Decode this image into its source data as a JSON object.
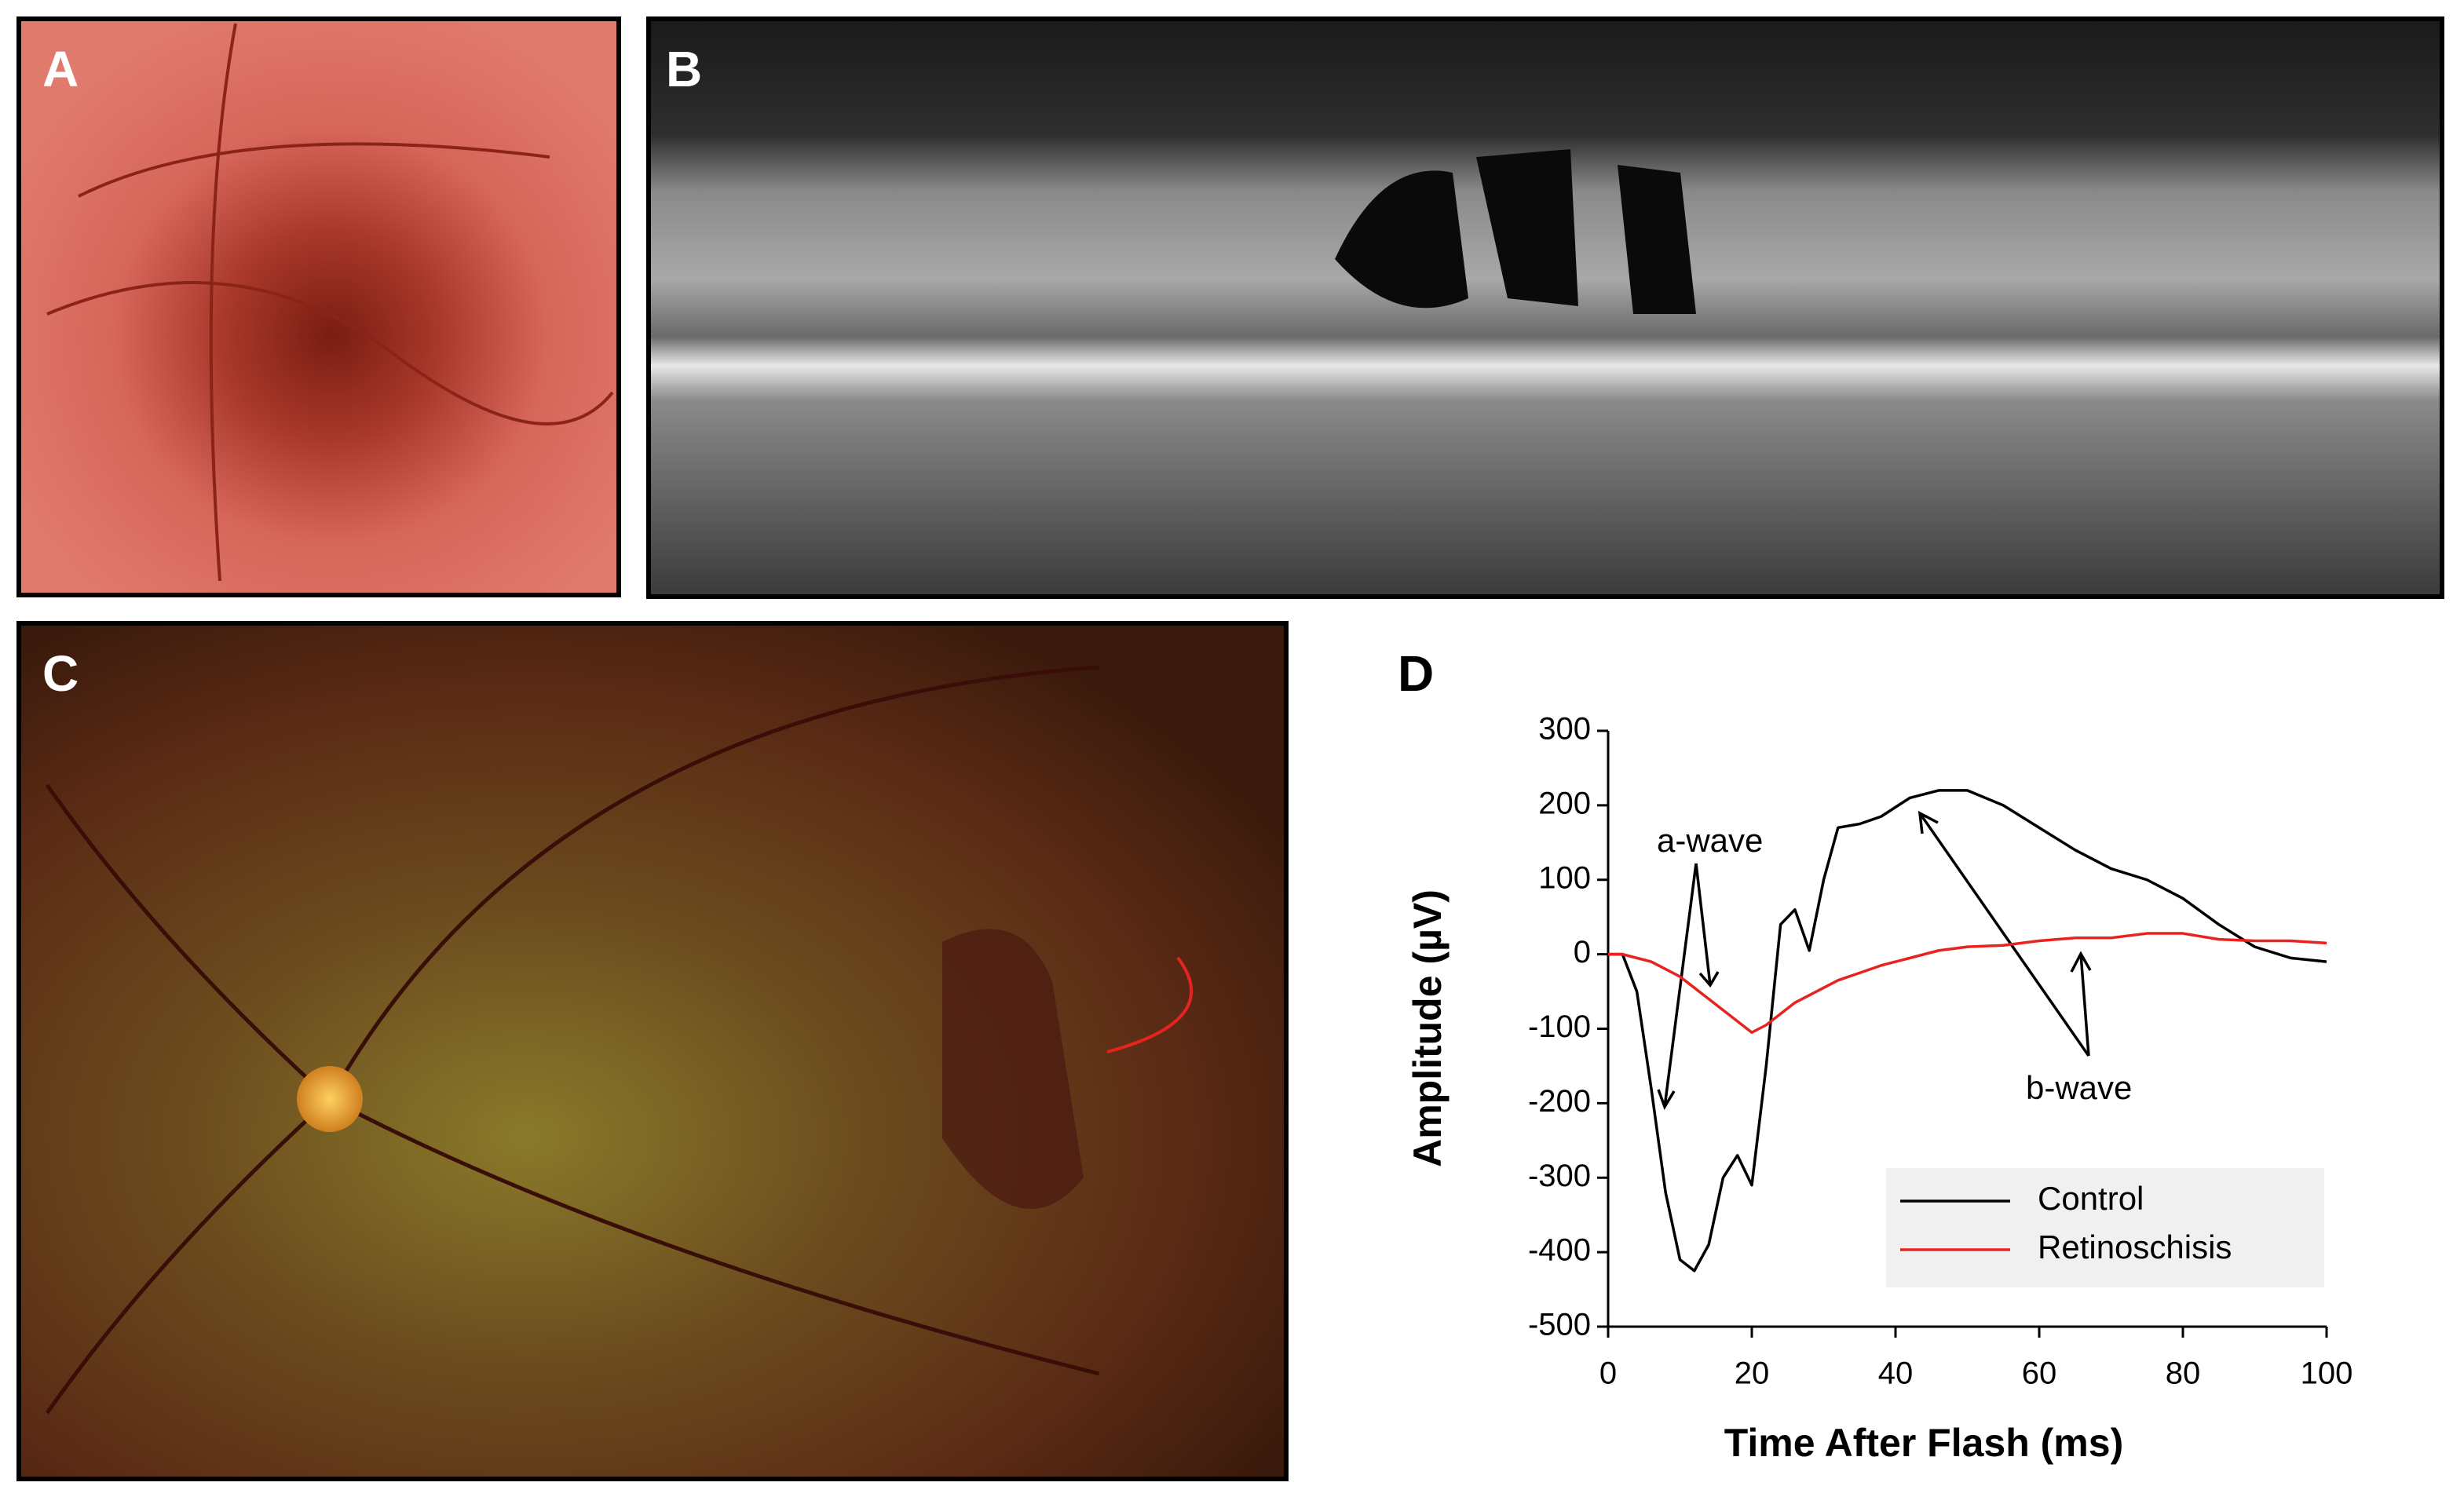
{
  "panels": {
    "a": "A",
    "b": "B",
    "c": "C"
  },
  "chart_data": {
    "type": "line",
    "panel_label": "D",
    "xlabel": "Time After Flash (ms)",
    "ylabel": "Amplitude (µV)",
    "x": [
      0,
      2,
      4,
      6,
      8,
      10,
      12,
      14,
      16,
      18,
      20,
      22,
      24,
      26,
      28,
      30,
      32,
      35,
      38,
      42,
      46,
      50,
      55,
      60,
      65,
      70,
      75,
      80,
      85,
      90,
      95,
      100
    ],
    "series": [
      {
        "name": "Control",
        "color": "#000000",
        "values": [
          0,
          0,
          -50,
          -180,
          -320,
          -410,
          -425,
          -390,
          -300,
          -270,
          -310,
          -150,
          40,
          60,
          5,
          100,
          170,
          175,
          185,
          210,
          220,
          220,
          200,
          170,
          140,
          115,
          100,
          75,
          40,
          10,
          -5,
          -10
        ]
      },
      {
        "name": "Retinoschisis",
        "color": "#e8231f",
        "values": [
          0,
          0,
          -5,
          -10,
          -20,
          -30,
          -45,
          -60,
          -75,
          -90,
          -105,
          -95,
          -80,
          -65,
          -55,
          -45,
          -35,
          -25,
          -15,
          -5,
          5,
          10,
          12,
          18,
          22,
          22,
          28,
          28,
          20,
          18,
          18,
          15
        ]
      }
    ],
    "xlim": [
      0,
      100
    ],
    "xticks": [
      0,
      20,
      40,
      60,
      80,
      100
    ],
    "ylim": [
      -500,
      300
    ],
    "yticks": [
      -500,
      -400,
      -300,
      -200,
      -100,
      0,
      100,
      200,
      300
    ],
    "annotations": [
      "a-wave",
      "b-wave"
    ]
  }
}
